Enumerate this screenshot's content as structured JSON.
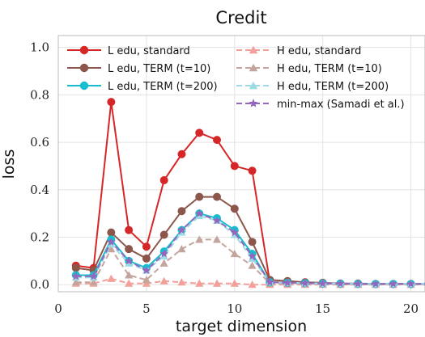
{
  "chart_data": {
    "type": "line",
    "title": "Credit",
    "xlabel": "target dimension",
    "ylabel": "loss",
    "xlim": [
      0,
      20.8
    ],
    "ylim": [
      -0.03,
      1.05
    ],
    "xticks": [
      0,
      5,
      10,
      15,
      20
    ],
    "yticks": [
      0.0,
      0.2,
      0.4,
      0.6,
      0.8,
      1.0
    ],
    "ytick_labels": [
      "0.0",
      "0.2",
      "0.4",
      "0.6",
      "0.8",
      "1.0"
    ],
    "grid": true,
    "legend_position": "top-left (two columns)",
    "x": [
      1,
      2,
      3,
      4,
      5,
      6,
      7,
      8,
      9,
      10,
      11,
      12,
      13,
      14,
      15,
      16,
      17,
      18,
      19,
      20,
      21
    ],
    "series": [
      {
        "name": "L edu, standard",
        "color": "#d62728",
        "style": "solid",
        "marker": "circle",
        "values": [
          0.08,
          0.07,
          0.77,
          0.23,
          0.16,
          0.44,
          0.55,
          0.64,
          0.61,
          0.5,
          0.48,
          0.01,
          0.01,
          0.01,
          0.005,
          0.003,
          0.002,
          0.002,
          0.002,
          0.002,
          0.002
        ]
      },
      {
        "name": "H edu, standard",
        "color": "#f4a09a",
        "style": "dashed",
        "marker": "triangle",
        "values": [
          0.005,
          0.005,
          0.025,
          0.005,
          0.005,
          0.015,
          0.01,
          0.005,
          0.005,
          0.005,
          0.0,
          0.0,
          0.0,
          0.0,
          0.0,
          0.0,
          0.0,
          0.0,
          0.0,
          0.0,
          0.0
        ]
      },
      {
        "name": "L edu, TERM (t=10)",
        "color": "#8c564b",
        "style": "solid",
        "marker": "circle",
        "values": [
          0.07,
          0.06,
          0.22,
          0.15,
          0.11,
          0.21,
          0.31,
          0.37,
          0.37,
          0.32,
          0.18,
          0.02,
          0.015,
          0.01,
          0.008,
          0.005,
          0.005,
          0.003,
          0.003,
          0.003,
          0.003
        ]
      },
      {
        "name": "H edu, TERM (t=10)",
        "color": "#c4a59e",
        "style": "dashed",
        "marker": "triangle",
        "values": [
          0.01,
          0.01,
          0.15,
          0.04,
          0.02,
          0.09,
          0.15,
          0.19,
          0.19,
          0.13,
          0.08,
          0.005,
          0.005,
          0.003,
          0.002,
          0.002,
          0.002,
          0.002,
          0.002,
          0.002,
          0.002
        ]
      },
      {
        "name": "L edu, TERM (t=200)",
        "color": "#17becf",
        "style": "solid",
        "marker": "circle",
        "values": [
          0.04,
          0.04,
          0.19,
          0.1,
          0.07,
          0.14,
          0.23,
          0.3,
          0.28,
          0.23,
          0.13,
          0.01,
          0.008,
          0.006,
          0.005,
          0.004,
          0.003,
          0.003,
          0.003,
          0.003,
          0.003
        ]
      },
      {
        "name": "H edu, TERM (t=200)",
        "color": "#9edae5",
        "style": "dashed",
        "marker": "triangle",
        "values": [
          0.03,
          0.03,
          0.17,
          0.09,
          0.06,
          0.12,
          0.22,
          0.29,
          0.27,
          0.21,
          0.11,
          0.01,
          0.008,
          0.006,
          0.005,
          0.004,
          0.003,
          0.003,
          0.003,
          0.003,
          0.003
        ]
      },
      {
        "name": "min-max (Samadi et al.)",
        "color": "#9467bd",
        "style": "dashed",
        "marker": "star",
        "values": [
          0.035,
          0.035,
          0.18,
          0.1,
          0.06,
          0.13,
          0.23,
          0.3,
          0.27,
          0.22,
          0.12,
          0.01,
          0.008,
          0.006,
          0.005,
          0.004,
          0.003,
          0.003,
          0.003,
          0.003,
          0.003
        ]
      }
    ]
  }
}
